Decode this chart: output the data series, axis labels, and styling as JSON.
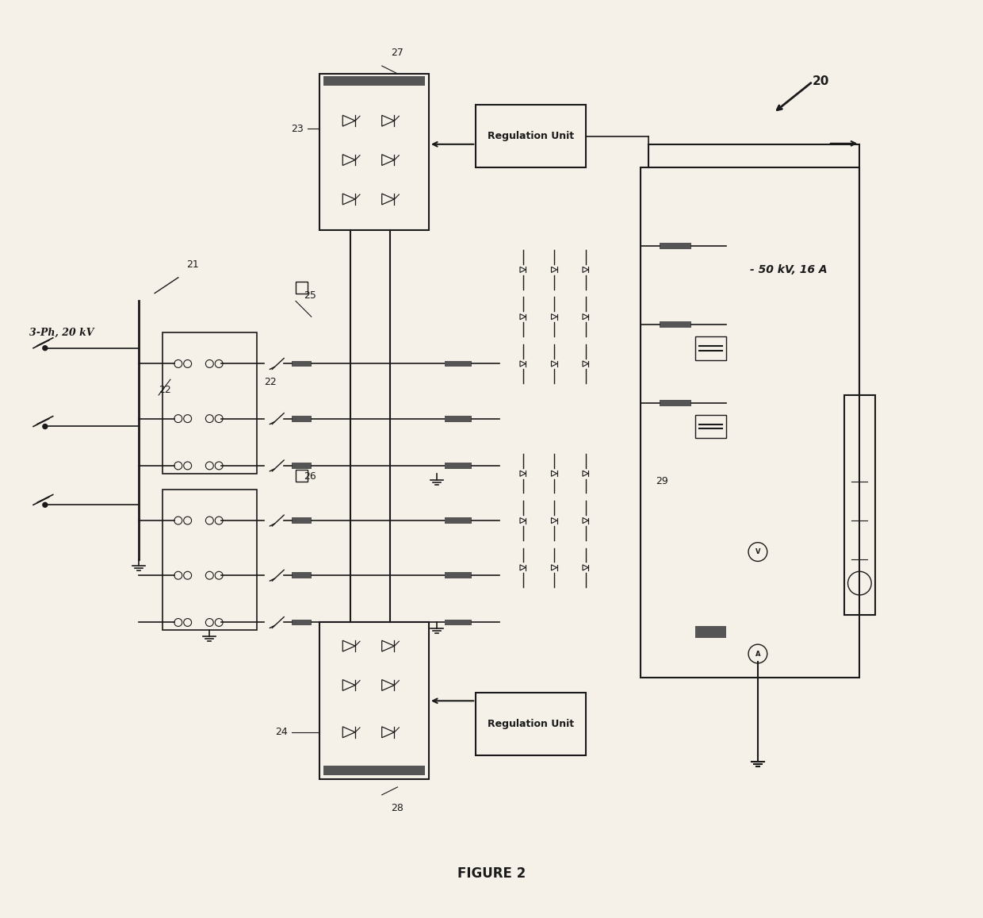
{
  "title": "FIGURE 2",
  "bg_color": "#f5f0e8",
  "label_20": "20",
  "label_21": "21",
  "label_22": "22",
  "label_23": "23",
  "label_24": "24",
  "label_25": "25",
  "label_26": "26",
  "label_27": "27",
  "label_28": "28",
  "label_29": "29",
  "text_3ph": "3-Ph, 20 kV",
  "text_output": "- 50 kV, 16 A",
  "text_reg": "Regulation Unit",
  "line_color": "#1a1a1a",
  "box_color": "#1a1a1a",
  "fill_color": "#555555"
}
